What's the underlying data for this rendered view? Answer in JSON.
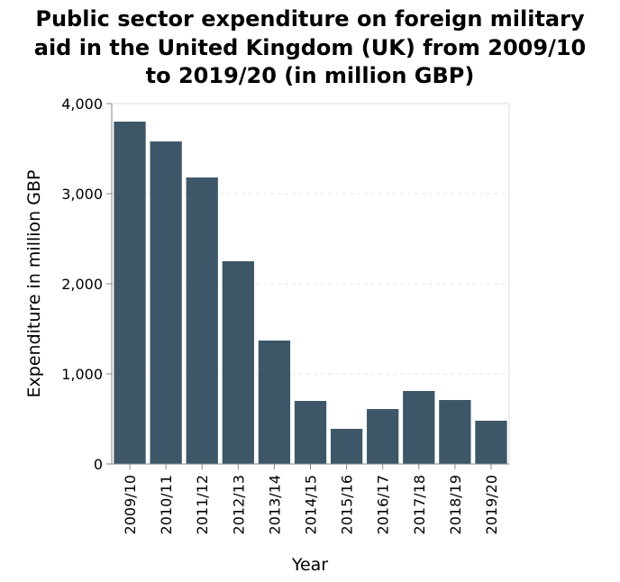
{
  "chart_data": {
    "type": "bar",
    "title_lines": [
      "Public sector expenditure on foreign military",
      "aid in the United Kingdom (UK) from 2009/10",
      "to 2019/20 (in million GBP)"
    ],
    "xlabel": "Year",
    "ylabel": "Expenditure in million GBP",
    "categories": [
      "2009/10",
      "2010/11",
      "2011/12",
      "2012/13",
      "2013/14",
      "2014/15",
      "2015/16",
      "2016/17",
      "2017/18",
      "2018/19",
      "2019/20"
    ],
    "values": [
      3800,
      3580,
      3180,
      2250,
      1370,
      700,
      390,
      610,
      810,
      710,
      480
    ],
    "ylim": [
      0,
      4000
    ],
    "yticks": [
      0,
      1000,
      2000,
      3000,
      4000
    ],
    "ytick_labels": [
      "0",
      "1,000",
      "2,000",
      "3,000",
      "4,000"
    ],
    "grid": true,
    "bar_color": "#3d5769"
  }
}
